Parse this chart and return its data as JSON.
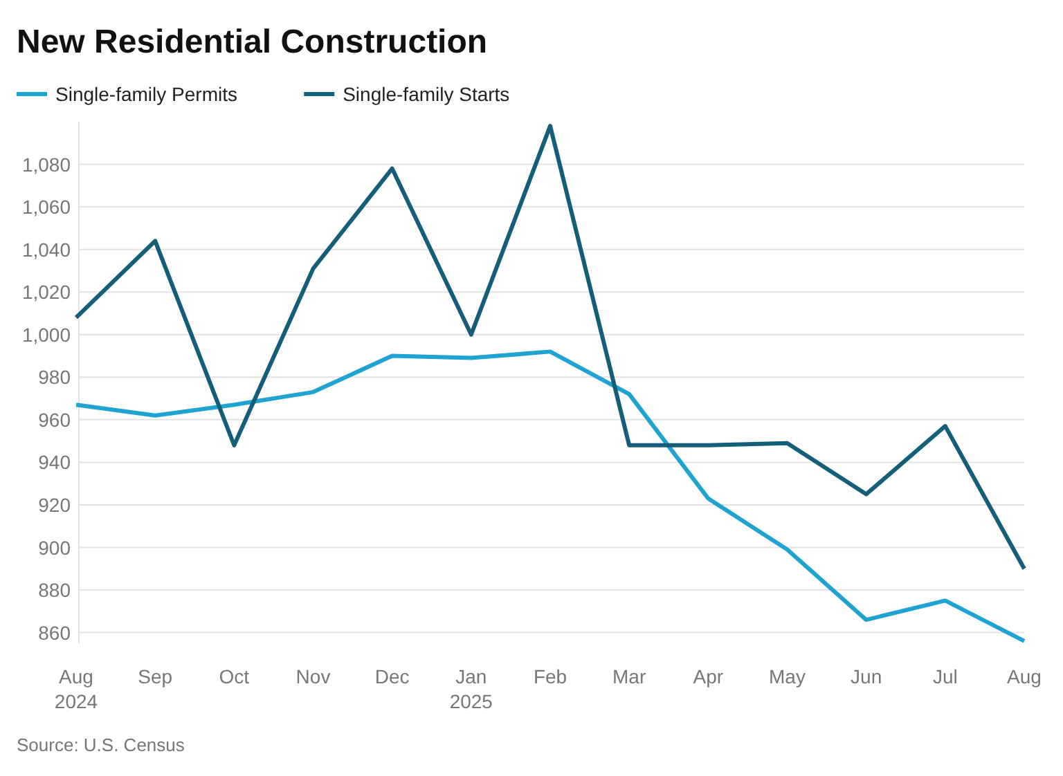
{
  "chart_data": {
    "type": "line",
    "title": "New Residential Construction",
    "categories": [
      "Aug 2024",
      "Sep",
      "Oct",
      "Nov",
      "Dec",
      "Jan 2025",
      "Feb",
      "Mar",
      "Apr",
      "May",
      "Jun",
      "Jul",
      "Aug"
    ],
    "series": [
      {
        "name": "Single-family Permits",
        "color": "#1fa3d1",
        "values": [
          967,
          962,
          967,
          973,
          990,
          989,
          992,
          972,
          923,
          899,
          866,
          875,
          856
        ]
      },
      {
        "name": "Single-family Starts",
        "color": "#155e7a",
        "values": [
          1008,
          1044,
          948,
          1031,
          1078,
          1000,
          1098,
          948,
          948,
          949,
          925,
          957,
          890
        ]
      }
    ],
    "ylim": [
      855,
      1100
    ],
    "yticks": [
      {
        "value": 860,
        "label": "860"
      },
      {
        "value": 880,
        "label": "880"
      },
      {
        "value": 900,
        "label": "900"
      },
      {
        "value": 920,
        "label": "920"
      },
      {
        "value": 940,
        "label": "940"
      },
      {
        "value": 960,
        "label": "960"
      },
      {
        "value": 980,
        "label": "980"
      },
      {
        "value": 1000,
        "label": "1,000"
      },
      {
        "value": 1020,
        "label": "1,020"
      },
      {
        "value": 1040,
        "label": "1,040"
      },
      {
        "value": 1060,
        "label": "1,060"
      },
      {
        "value": 1080,
        "label": "1,080"
      }
    ],
    "grid": "y",
    "legend": "top left",
    "line_style": "solid",
    "marker": "none",
    "annotations": [
      "Source: U.S. Census"
    ]
  }
}
